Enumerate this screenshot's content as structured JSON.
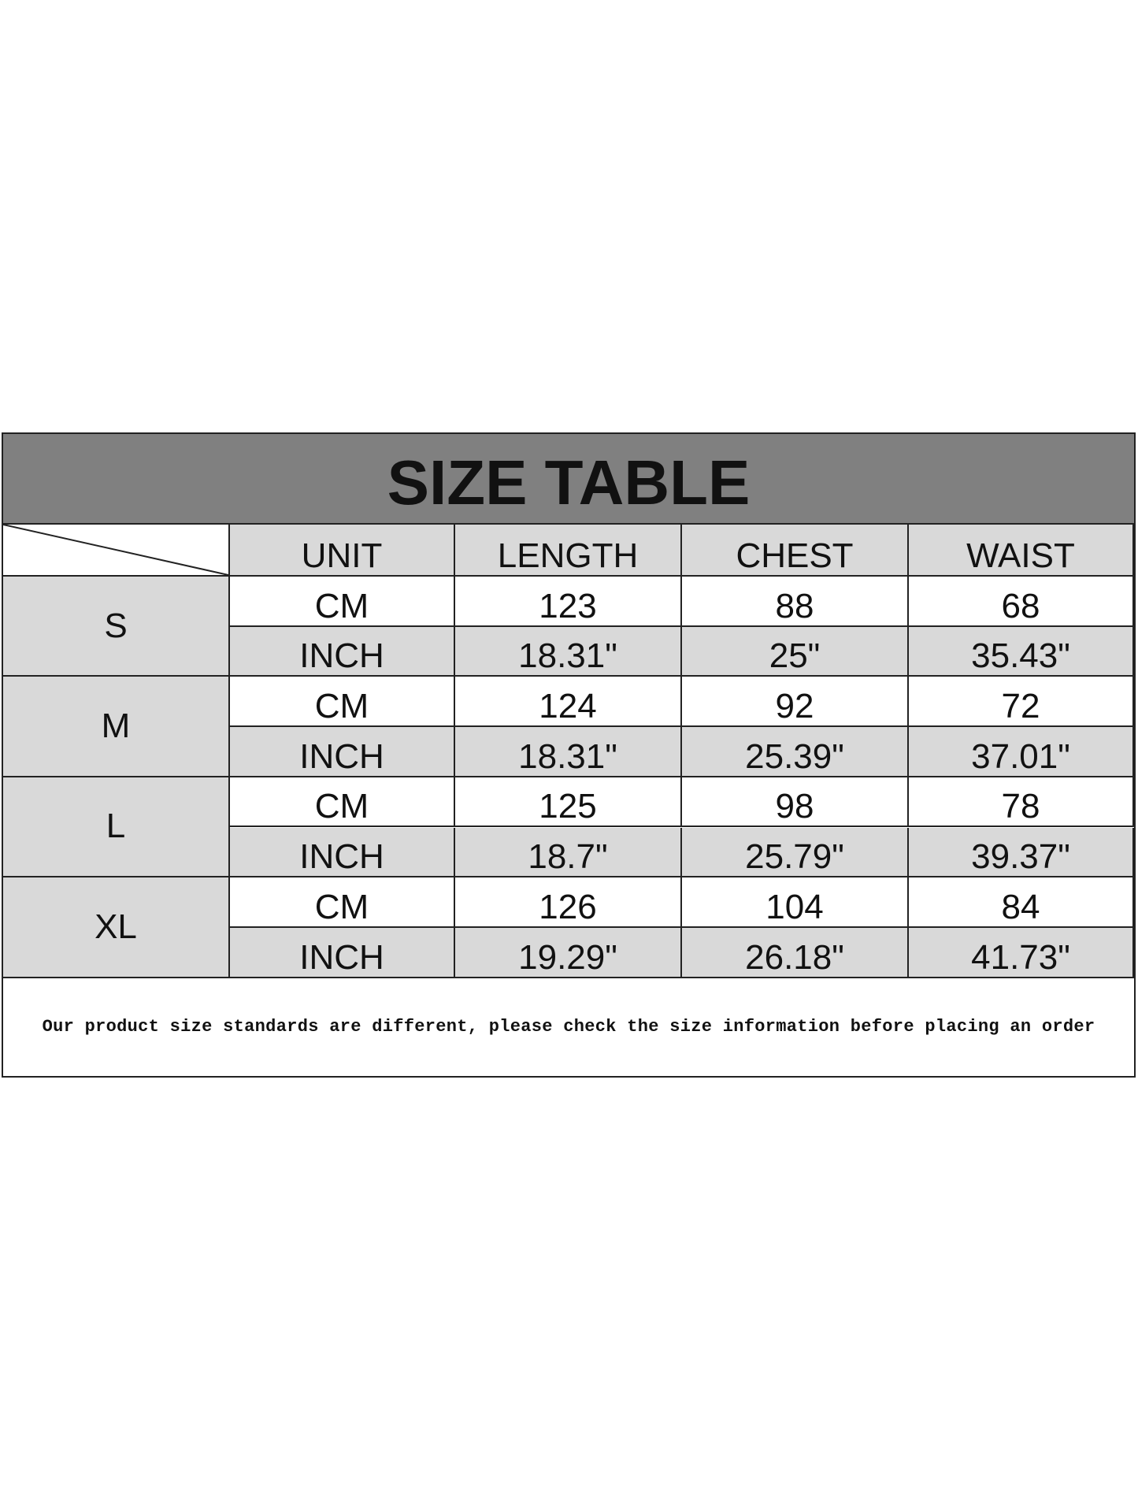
{
  "title": "SIZE TABLE",
  "columns": [
    "UNIT",
    "LENGTH",
    "CHEST",
    "WAIST"
  ],
  "rows": [
    {
      "size": "S",
      "cm": [
        "CM",
        "123",
        "88",
        "68"
      ],
      "inch": [
        "INCH",
        "18.31\"",
        "25\"",
        "35.43\""
      ]
    },
    {
      "size": "M",
      "cm": [
        "CM",
        "124",
        "92",
        "72"
      ],
      "inch": [
        "INCH",
        "18.31\"",
        "25.39\"",
        "37.01\""
      ]
    },
    {
      "size": "L",
      "cm": [
        "CM",
        "125",
        "98",
        "78"
      ],
      "inch": [
        "INCH",
        "18.7\"",
        "25.79\"",
        "39.37\""
      ]
    },
    {
      "size": "XL",
      "cm": [
        "CM",
        "126",
        "104",
        "84"
      ],
      "inch": [
        "INCH",
        "19.29\"",
        "26.18\"",
        "41.73\""
      ]
    }
  ],
  "footer": "Our product size standards are different, please check the size information before placing an order",
  "colors": {
    "title_band": "#808080",
    "shaded_cell": "#d9d9d9",
    "border": "#222222"
  }
}
